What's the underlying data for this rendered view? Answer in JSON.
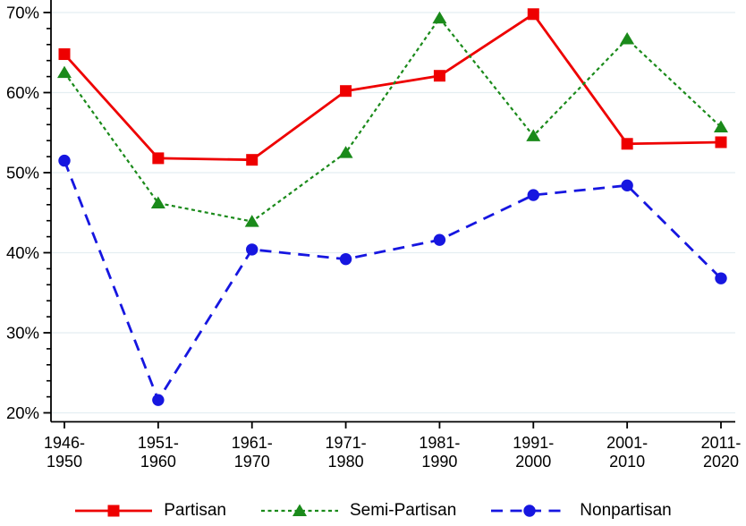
{
  "chart_data": {
    "type": "line",
    "title": "",
    "xlabel": "",
    "ylabel": "",
    "categories": [
      "1946-1950",
      "1951-1960",
      "1961-1970",
      "1971-1980",
      "1981-1990",
      "1991-2000",
      "2001-2010",
      "2011-2020"
    ],
    "category_labels": [
      [
        "1946-",
        "1950"
      ],
      [
        "1951-",
        "1960"
      ],
      [
        "1961-",
        "1970"
      ],
      [
        "1971-",
        "1980"
      ],
      [
        "1981-",
        "1990"
      ],
      [
        "1991-",
        "2000"
      ],
      [
        "2001-",
        "2010"
      ],
      [
        "2011-",
        "2020"
      ]
    ],
    "series": [
      {
        "name": "Partisan",
        "color": "#ee0000",
        "marker": "square",
        "line_style": "solid",
        "values": [
          64.8,
          51.8,
          51.6,
          60.2,
          62.1,
          69.8,
          53.6,
          53.8
        ]
      },
      {
        "name": "Semi-Partisan",
        "color": "#1a8a1a",
        "marker": "triangle",
        "line_style": "dotted",
        "values": [
          62.5,
          46.2,
          43.9,
          52.5,
          69.3,
          54.6,
          66.7,
          55.7
        ]
      },
      {
        "name": "Nonpartisan",
        "color": "#1616e0",
        "marker": "circle",
        "line_style": "dashed",
        "values": [
          51.5,
          21.6,
          40.4,
          39.2,
          41.6,
          47.2,
          48.4,
          36.8
        ]
      }
    ],
    "y_axis": {
      "min": 20,
      "max": 70,
      "major_step": 10,
      "minor_step": 2,
      "tick_labels": [
        "20%",
        "30%",
        "40%",
        "50%",
        "60%",
        "70%"
      ]
    },
    "ylim": [
      20,
      70
    ],
    "grid": "horizontal-major",
    "legend_position": "bottom-center",
    "colors": {
      "gridline": "#e4eef2",
      "axis": "#000000",
      "background": "#ffffff"
    }
  }
}
